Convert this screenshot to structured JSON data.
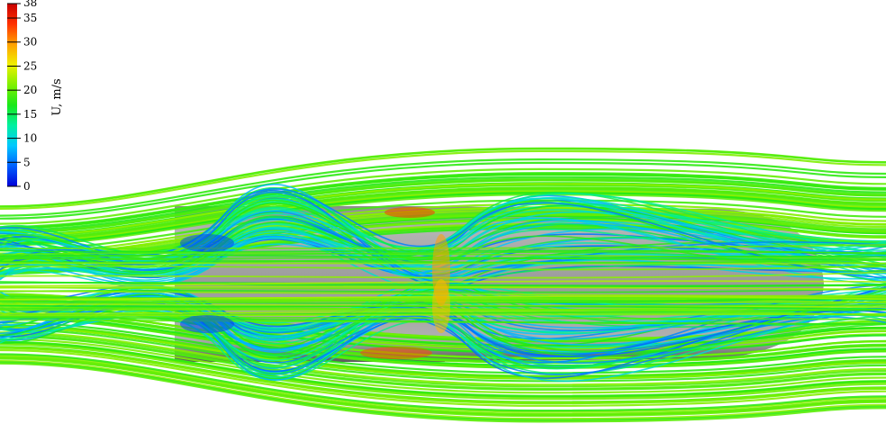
{
  "colorbar": {
    "title": "U, m/s",
    "tick_labels": [
      "38",
      "35",
      "30",
      "25",
      "20",
      "15",
      "10",
      "5",
      "0"
    ],
    "tick_values": [
      38,
      35,
      30,
      25,
      20,
      15,
      10,
      5,
      0
    ],
    "range": [
      0,
      38
    ],
    "colormap": [
      "#0000d8",
      "#0060ff",
      "#00c8ff",
      "#00f0a0",
      "#18e818",
      "#80f000",
      "#f0f000",
      "#ffa000",
      "#ff3000",
      "#c80000"
    ]
  },
  "scene": {
    "body_color": "#a0a0a0",
    "body_shadow": "#6a6a6a",
    "streamline_base_color": "#28e020"
  }
}
